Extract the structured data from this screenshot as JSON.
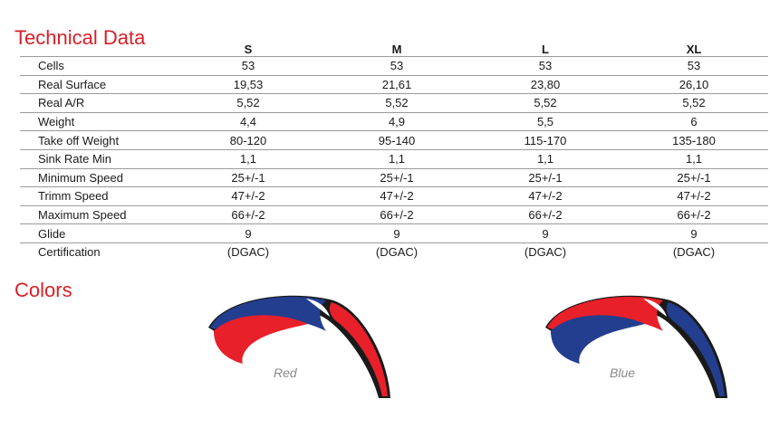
{
  "technical_title": "Technical Data",
  "colors_title": "Colors",
  "sizes": [
    "S",
    "M",
    "L",
    "XL"
  ],
  "rows": [
    {
      "label": "Cells",
      "values": [
        "53",
        "53",
        "53",
        "53"
      ]
    },
    {
      "label": "Real Surface",
      "values": [
        "19,53",
        "21,61",
        "23,80",
        "26,10"
      ]
    },
    {
      "label": "Real A/R",
      "values": [
        "5,52",
        "5,52",
        "5,52",
        "5,52"
      ]
    },
    {
      "label": "Weight",
      "values": [
        "4,4",
        "4,9",
        "5,5",
        "6"
      ]
    },
    {
      "label": "Take off Weight",
      "values": [
        "80-120",
        "95-140",
        "115-170",
        "135-180"
      ]
    },
    {
      "label": "Sink Rate Min",
      "values": [
        "1,1",
        "1,1",
        "1,1",
        "1,1"
      ]
    },
    {
      "label": "Minimum Speed",
      "values": [
        "25+/-1",
        "25+/-1",
        "25+/-1",
        "25+/-1"
      ]
    },
    {
      "label": "Trimm Speed",
      "values": [
        "47+/-2",
        "47+/-2",
        "47+/-2",
        "47+/-2"
      ]
    },
    {
      "label": "Maximum Speed",
      "values": [
        "66+/-2",
        "66+/-2",
        "66+/-2",
        "66+/-2"
      ]
    },
    {
      "label": "Glide",
      "values": [
        "9",
        "9",
        "9",
        "9"
      ]
    },
    {
      "label": "Certification",
      "values": [
        "(DGAC)",
        "(DGAC)",
        "(DGAC)",
        "(DGAC)"
      ]
    }
  ],
  "color_options": [
    {
      "caption": "Red",
      "primary": "#e8202a",
      "secondary": "#233e8f"
    },
    {
      "caption": "Blue",
      "primary": "#233e8f",
      "secondary": "#e8202a"
    }
  ]
}
